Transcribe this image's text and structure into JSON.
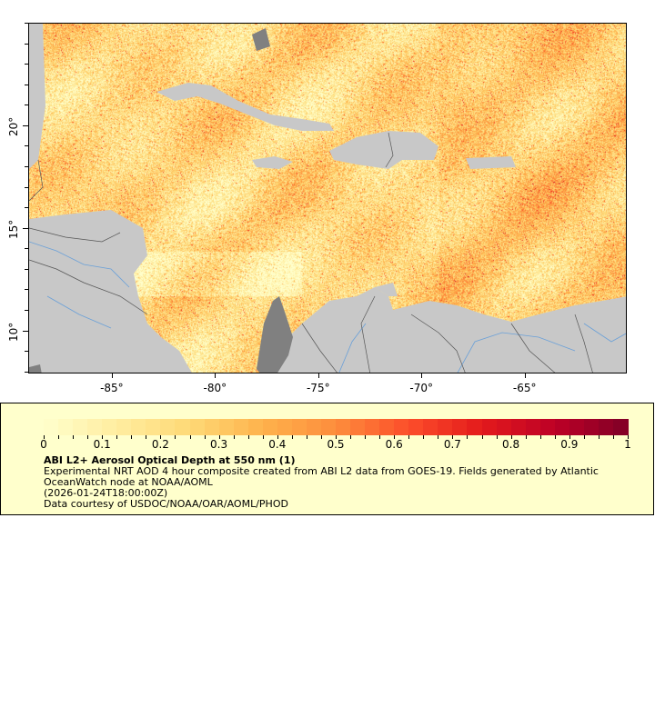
{
  "map": {
    "lon_range": [
      -89.05,
      -60.05
    ],
    "lat_range": [
      7.9,
      25.0
    ],
    "x_ticks": [
      {
        "value": -85,
        "label": "-85°"
      },
      {
        "value": -80,
        "label": "-80°"
      },
      {
        "value": -75,
        "label": "-75°"
      },
      {
        "value": -70,
        "label": "-70°"
      },
      {
        "value": -65,
        "label": "-65°"
      }
    ],
    "y_ticks": [
      {
        "value": 20,
        "label": "20°"
      },
      {
        "value": 15,
        "label": "15°"
      },
      {
        "value": 10,
        "label": "10°"
      }
    ],
    "colors": {
      "land": "#c8c8c8",
      "no_data_land": "#808080",
      "rivers": "#6aa0d8",
      "borders": "#555555"
    }
  },
  "legend": {
    "colorbar": {
      "min": 0,
      "max": 1,
      "steps": 40,
      "tick_labels": [
        "0",
        "0.1",
        "0.2",
        "0.3",
        "0.4",
        "0.5",
        "0.6",
        "0.7",
        "0.8",
        "0.9",
        "1"
      ],
      "colors": [
        "#ffffcc",
        "#ffeda0",
        "#fed976",
        "#feb24c",
        "#fd8d3c",
        "#fc4e2a",
        "#e31a1c",
        "#bd0026",
        "#800026"
      ]
    },
    "title": "ABI L2+ Aerosol Optical Depth at 550 nm (1)",
    "description": "Experimental NRT AOD 4 hour composite created from ABI L2 data from GOES-19. Fields generated by Atlantic OceanWatch node at NOAA/AOML",
    "time": "(2026-01-24T18:00:00Z)",
    "credit": "Data courtesy of USDOC/NOAA/OAR/AOML/PHOD"
  }
}
